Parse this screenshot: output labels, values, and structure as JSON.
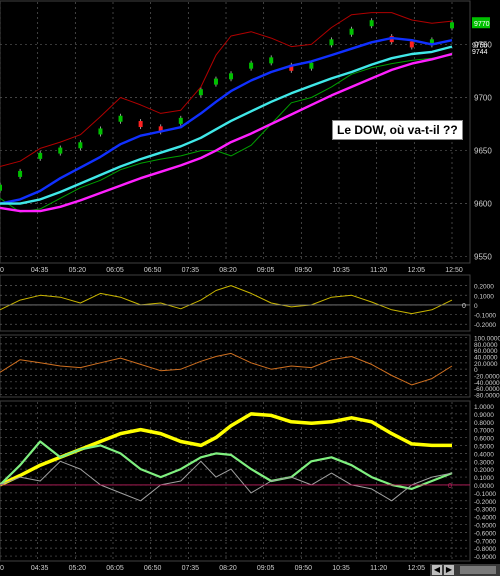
{
  "chart_data": [
    {
      "type": "line",
      "panel": "price",
      "annotation": "Le DOW, où va-t-il ??",
      "ylim": [
        9545,
        9790
      ],
      "y_ticks": [
        "9550",
        "9600",
        "9650",
        "9700",
        "9750"
      ],
      "last_value_badge": "9770",
      "last_price_labels": [
        "9750",
        "9744"
      ],
      "x_ticks": [
        "0",
        "04:35",
        "05:20",
        "06:05",
        "06:50",
        "07:35",
        "08:20",
        "09:05",
        "09:50",
        "10:35",
        "11:20",
        "12:05",
        "12:50"
      ],
      "x_index_range": [
        0,
        450
      ],
      "grid": true,
      "series": [
        {
          "role": "candles",
          "color": "#00c000",
          "x": [
            0,
            20,
            40,
            60,
            80,
            100,
            120,
            140,
            160,
            180,
            200,
            215,
            230,
            250,
            270,
            290,
            310,
            330,
            350,
            370,
            390,
            410,
            430,
            450
          ],
          "values": [
            9615,
            9628,
            9645,
            9650,
            9655,
            9668,
            9680,
            9675,
            9670,
            9678,
            9705,
            9715,
            9720,
            9730,
            9735,
            9728,
            9730,
            9752,
            9762,
            9770,
            9755,
            9750,
            9752,
            9768
          ]
        },
        {
          "role": "upper-band",
          "color": "#b00000",
          "x": [
            0,
            20,
            40,
            60,
            80,
            100,
            120,
            140,
            160,
            180,
            200,
            215,
            230,
            250,
            270,
            290,
            310,
            330,
            350,
            370,
            390,
            410,
            430,
            450
          ],
          "values": [
            9635,
            9640,
            9652,
            9658,
            9665,
            9682,
            9700,
            9693,
            9685,
            9688,
            9710,
            9740,
            9758,
            9762,
            9756,
            9748,
            9750,
            9766,
            9778,
            9780,
            9780,
            9773,
            9770,
            9772
          ]
        },
        {
          "role": "lower-band",
          "color": "#00a000",
          "x": [
            0,
            20,
            40,
            60,
            80,
            100,
            120,
            140,
            160,
            180,
            200,
            215,
            230,
            250,
            270,
            290,
            310,
            330,
            350,
            370,
            390,
            410,
            430,
            450
          ],
          "values": [
            9605,
            9592,
            9595,
            9605,
            9615,
            9622,
            9632,
            9638,
            9642,
            9645,
            9650,
            9650,
            9645,
            9655,
            9675,
            9695,
            9700,
            9710,
            9722,
            9728,
            9732,
            9735,
            9737,
            9740
          ]
        },
        {
          "role": "ma-blue",
          "color": "#1030ff",
          "x": [
            0,
            20,
            40,
            60,
            80,
            100,
            120,
            140,
            160,
            180,
            200,
            215,
            230,
            250,
            270,
            290,
            310,
            330,
            350,
            370,
            390,
            410,
            430,
            450
          ],
          "values": [
            9600,
            9604,
            9612,
            9624,
            9634,
            9644,
            9656,
            9664,
            9668,
            9672,
            9685,
            9696,
            9706,
            9716,
            9724,
            9730,
            9734,
            9740,
            9746,
            9752,
            9756,
            9754,
            9750,
            9754
          ]
        },
        {
          "role": "ma-cyan",
          "color": "#40e8e8",
          "x": [
            0,
            20,
            40,
            60,
            80,
            100,
            120,
            140,
            160,
            180,
            200,
            215,
            230,
            250,
            270,
            290,
            310,
            330,
            350,
            370,
            390,
            410,
            430,
            450
          ],
          "values": [
            9600,
            9600,
            9604,
            9611,
            9619,
            9627,
            9635,
            9642,
            9648,
            9654,
            9662,
            9670,
            9678,
            9687,
            9696,
            9704,
            9711,
            9718,
            9724,
            9731,
            9737,
            9741,
            9743,
            9748
          ]
        },
        {
          "role": "ma-magenta",
          "color": "#ff20ff",
          "x": [
            0,
            20,
            40,
            60,
            80,
            100,
            120,
            140,
            160,
            180,
            200,
            215,
            230,
            250,
            270,
            290,
            310,
            330,
            350,
            370,
            390,
            410,
            430,
            450
          ],
          "values": [
            9596,
            9593,
            9593,
            9597,
            9603,
            9610,
            9617,
            9624,
            9630,
            9636,
            9643,
            9650,
            9658,
            9666,
            9675,
            9684,
            9693,
            9702,
            9710,
            9718,
            9726,
            9732,
            9736,
            9741
          ]
        }
      ]
    },
    {
      "type": "line",
      "panel": "oscillator-1",
      "ylim": [
        -0.26,
        0.3
      ],
      "y_ticks": [
        "0.2000",
        "0.1000",
        "0",
        "-0.1000",
        "-0.2000"
      ],
      "zero_label": "0",
      "series": [
        {
          "color": "#c8b400",
          "x": [
            0,
            20,
            40,
            60,
            80,
            100,
            120,
            140,
            160,
            180,
            200,
            215,
            230,
            250,
            270,
            290,
            310,
            330,
            350,
            370,
            390,
            410,
            430,
            450
          ],
          "values": [
            -0.05,
            0.05,
            0.1,
            0.08,
            0.02,
            0.12,
            0.08,
            0.0,
            0.02,
            -0.04,
            0.05,
            0.15,
            0.2,
            0.12,
            0.02,
            -0.02,
            0.0,
            0.08,
            0.1,
            0.03,
            -0.05,
            -0.09,
            -0.05,
            0.05
          ]
        }
      ]
    },
    {
      "type": "line",
      "panel": "oscillator-2",
      "ylim": [
        -85,
        105
      ],
      "y_ticks": [
        "100.0000",
        "80.0000",
        "60.0000",
        "40.0000",
        "20.0000",
        "0",
        "-20.0000",
        "-40.0000",
        "-60.0000",
        "-80.0000"
      ],
      "series": [
        {
          "color": "#d07020",
          "x": [
            0,
            20,
            40,
            60,
            80,
            100,
            120,
            140,
            160,
            180,
            200,
            215,
            230,
            250,
            270,
            290,
            310,
            330,
            350,
            370,
            390,
            410,
            430,
            450
          ],
          "values": [
            -10,
            30,
            20,
            10,
            5,
            20,
            35,
            15,
            -5,
            0,
            25,
            40,
            50,
            20,
            0,
            10,
            5,
            30,
            40,
            15,
            -20,
            -50,
            -30,
            10
          ]
        }
      ]
    },
    {
      "type": "line",
      "panel": "oscillator-3",
      "ylim": [
        -0.95,
        1.05
      ],
      "y_ticks": [
        "1.0000",
        "0.9000",
        "0.8000",
        "0.7000",
        "0.6000",
        "0.5000",
        "0.4000",
        "0.3000",
        "0.2000",
        "0.1000",
        "0.0000",
        "-0.1000",
        "-0.2000",
        "-0.3000",
        "-0.4000",
        "-0.5000",
        "-0.6000",
        "-0.7000",
        "-0.8000",
        "-0.9000"
      ],
      "zero_label": "0",
      "x_ticks": [
        "0",
        "04:35",
        "05:20",
        "06:05",
        "06:50",
        "07:35",
        "08:20",
        "09:05",
        "09:50",
        "10:35",
        "11:20",
        "12:05",
        "12:50"
      ],
      "series": [
        {
          "color": "#ffff00",
          "x": [
            0,
            20,
            40,
            60,
            80,
            100,
            120,
            140,
            160,
            180,
            200,
            215,
            230,
            250,
            270,
            290,
            310,
            330,
            350,
            370,
            390,
            410,
            430,
            450
          ],
          "values": [
            0.0,
            0.12,
            0.25,
            0.35,
            0.45,
            0.55,
            0.65,
            0.7,
            0.65,
            0.55,
            0.5,
            0.6,
            0.75,
            0.9,
            0.88,
            0.8,
            0.78,
            0.8,
            0.85,
            0.8,
            0.65,
            0.52,
            0.5,
            0.5
          ]
        },
        {
          "color": "#80f080",
          "x": [
            0,
            20,
            40,
            60,
            80,
            100,
            120,
            140,
            160,
            180,
            200,
            215,
            230,
            250,
            270,
            290,
            310,
            330,
            350,
            370,
            390,
            410,
            430,
            450
          ],
          "values": [
            0.0,
            0.25,
            0.55,
            0.35,
            0.45,
            0.5,
            0.4,
            0.2,
            0.1,
            0.2,
            0.35,
            0.4,
            0.38,
            0.2,
            0.05,
            0.1,
            0.3,
            0.35,
            0.25,
            0.1,
            0.0,
            -0.05,
            0.05,
            0.15
          ]
        },
        {
          "color": "#a0a0a0",
          "x": [
            0,
            20,
            40,
            60,
            80,
            100,
            120,
            140,
            160,
            180,
            200,
            215,
            230,
            250,
            270,
            290,
            310,
            330,
            350,
            370,
            390,
            410,
            430,
            450
          ],
          "values": [
            0.0,
            0.1,
            0.05,
            0.3,
            0.2,
            0.0,
            -0.1,
            -0.2,
            0.0,
            0.05,
            0.3,
            0.1,
            0.2,
            -0.1,
            0.05,
            0.1,
            0.0,
            0.15,
            0.0,
            -0.05,
            -0.2,
            0.0,
            0.1,
            0.15
          ]
        }
      ]
    }
  ]
}
